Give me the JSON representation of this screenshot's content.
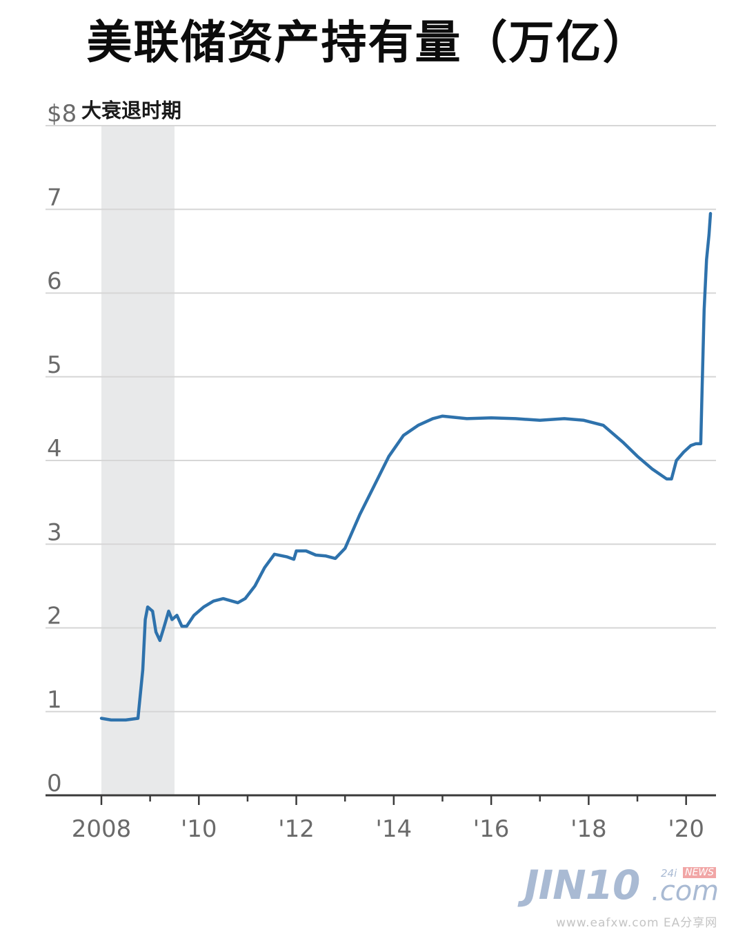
{
  "chart_data": {
    "type": "line",
    "title": "美联储资产持有量（万亿）",
    "shaded_region_label": "大衰退时期",
    "shaded_region": {
      "x_start": 2008.0,
      "x_end": 2009.5
    },
    "xlim": [
      2008.0,
      2020.5
    ],
    "ylim": [
      0,
      8
    ],
    "y_ticks": [
      0,
      1,
      2,
      3,
      4,
      5,
      6,
      7,
      8
    ],
    "y_tick_labels": [
      "0",
      "1",
      "2",
      "3",
      "4",
      "5",
      "6",
      "7",
      "$8"
    ],
    "x_ticks": [
      2008,
      2010,
      2012,
      2014,
      2016,
      2018,
      2020
    ],
    "x_tick_labels": [
      "2008",
      "'10",
      "'12",
      "'14",
      "'16",
      "'18",
      "'20"
    ],
    "grid": true,
    "legend": "none",
    "line_color": "#2e72ac",
    "series": [
      {
        "x": [
          2008.0,
          2008.2,
          2008.5,
          2008.75,
          2008.85,
          2008.9,
          2008.95,
          2009.05,
          2009.12,
          2009.2,
          2009.28,
          2009.38,
          2009.45,
          2009.55,
          2009.65,
          2009.75,
          2009.9,
          2010.1,
          2010.3,
          2010.5,
          2010.8,
          2010.95,
          2011.15,
          2011.35,
          2011.55,
          2011.8,
          2011.95,
          2012.0,
          2012.2,
          2012.4,
          2012.6,
          2012.8,
          2013.0,
          2013.3,
          2013.6,
          2013.9,
          2014.2,
          2014.5,
          2014.8,
          2015.0,
          2015.5,
          2016.0,
          2016.5,
          2017.0,
          2017.5,
          2017.9,
          2018.3,
          2018.7,
          2019.0,
          2019.3,
          2019.6,
          2019.7,
          2019.8,
          2019.95,
          2020.1,
          2020.2,
          2020.3,
          2020.33,
          2020.37,
          2020.42,
          2020.47,
          2020.5
        ],
        "values": [
          0.92,
          0.9,
          0.9,
          0.92,
          1.5,
          2.1,
          2.25,
          2.2,
          1.95,
          1.85,
          2.0,
          2.2,
          2.1,
          2.15,
          2.02,
          2.02,
          2.15,
          2.25,
          2.32,
          2.35,
          2.3,
          2.35,
          2.5,
          2.72,
          2.88,
          2.85,
          2.82,
          2.92,
          2.92,
          2.87,
          2.86,
          2.83,
          2.95,
          3.35,
          3.7,
          4.05,
          4.3,
          4.42,
          4.5,
          4.53,
          4.5,
          4.51,
          4.5,
          4.48,
          4.5,
          4.48,
          4.42,
          4.22,
          4.05,
          3.9,
          3.78,
          3.78,
          4.0,
          4.1,
          4.18,
          4.2,
          4.2,
          4.9,
          5.8,
          6.4,
          6.7,
          6.95
        ]
      }
    ]
  },
  "watermark": {
    "logo": "JIN10",
    "logo_suffix": ".com",
    "badge_24": "24i",
    "badge_news": "NEWS",
    "site": "www.eafxw.com  EA分享网"
  }
}
